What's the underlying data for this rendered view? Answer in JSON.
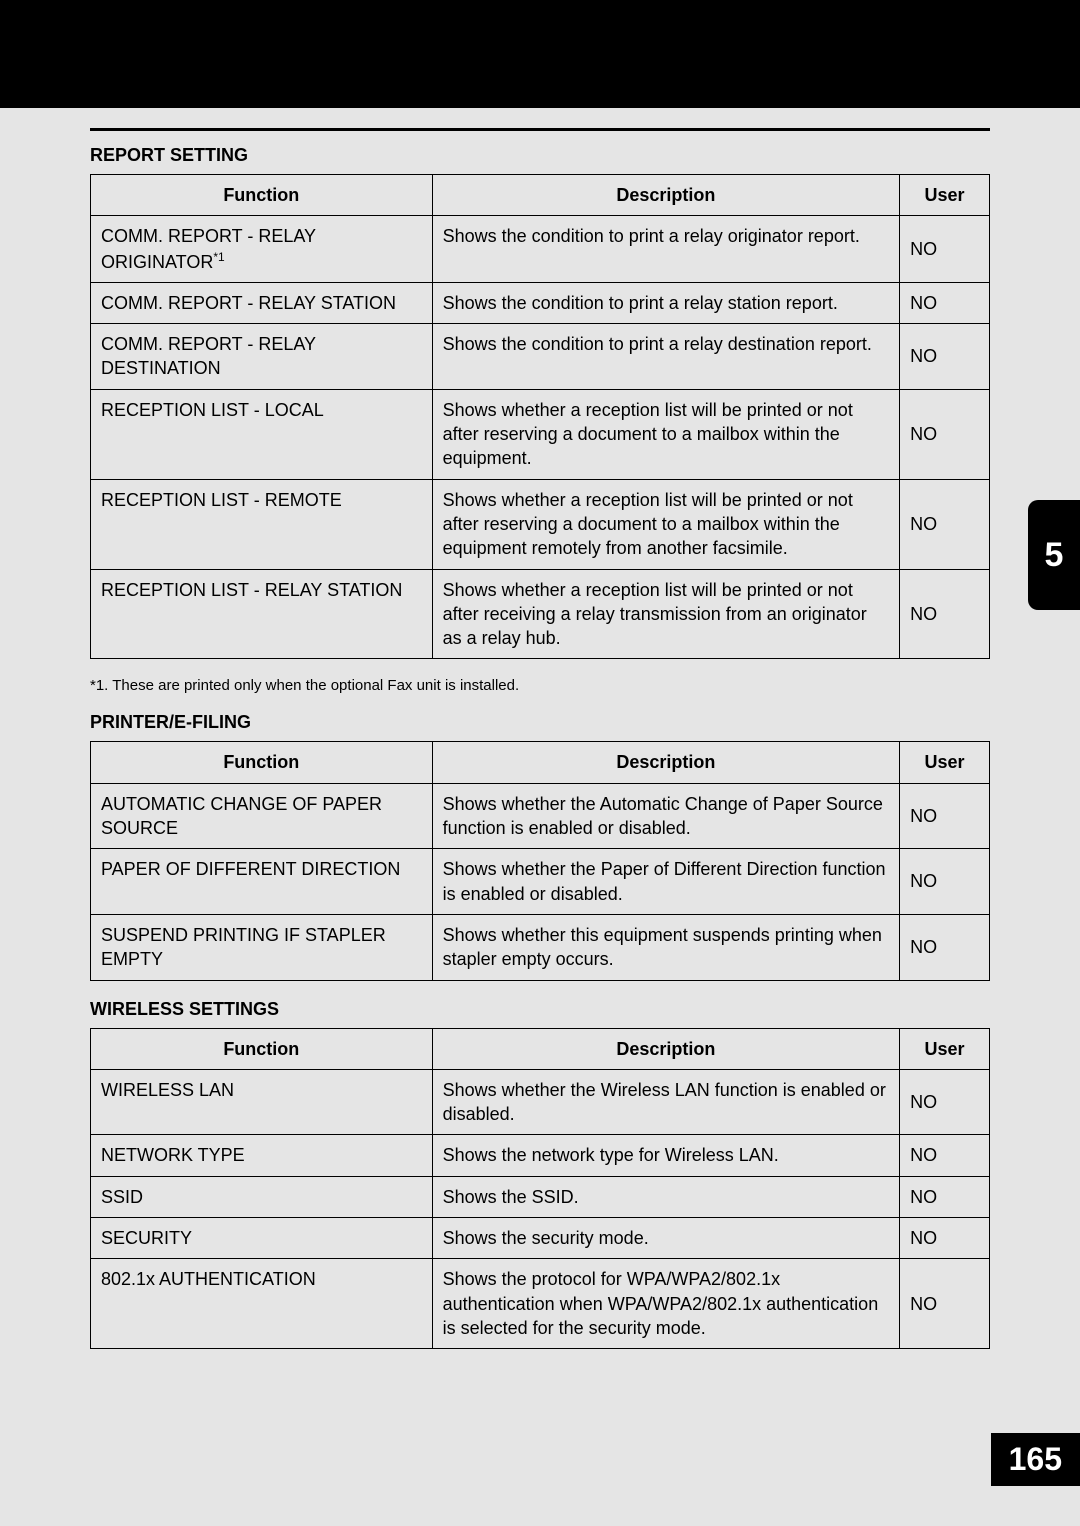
{
  "pageNumber": "165",
  "sideTab": "5",
  "sections": [
    {
      "title": "REPORT SETTING",
      "headers": {
        "func": "Function",
        "desc": "Description",
        "user": "User"
      },
      "rows": [
        {
          "func": "COMM. REPORT - RELAY ORIGINATOR",
          "footref": "*1",
          "desc": "Shows the condition to print a relay originator report.",
          "user": "NO"
        },
        {
          "func": "COMM. REPORT - RELAY STATION",
          "desc": "Shows the condition to print a relay station report.",
          "user": "NO"
        },
        {
          "func": "COMM. REPORT - RELAY DESTINATION",
          "desc": "Shows the condition to print a relay destination report.",
          "user": "NO"
        },
        {
          "func": "RECEPTION LIST - LOCAL",
          "desc": "Shows whether a reception list will be printed or not after reserving a document to a mailbox within the equipment.",
          "user": "NO"
        },
        {
          "func": "RECEPTION LIST - REMOTE",
          "desc": "Shows whether a reception list will be printed or not after reserving a document to a mailbox within the equipment remotely from another facsimile.",
          "user": "NO"
        },
        {
          "func": "RECEPTION LIST - RELAY STATION",
          "desc": "Shows whether a reception list will be printed or not after receiving a relay transmission from an originator as a relay hub.",
          "user": "NO"
        }
      ],
      "footnote": "*1. These are printed only when the optional Fax unit is installed."
    },
    {
      "title": "PRINTER/E-FILING",
      "headers": {
        "func": "Function",
        "desc": "Description",
        "user": "User"
      },
      "rows": [
        {
          "func": "AUTOMATIC CHANGE OF PAPER SOURCE",
          "desc": "Shows whether the Automatic Change of Paper Source function is enabled or disabled.",
          "user": "NO"
        },
        {
          "func": "PAPER OF DIFFERENT DIRECTION",
          "desc": "Shows whether the Paper of Different Direction function is enabled or disabled.",
          "user": "NO"
        },
        {
          "func": "SUSPEND PRINTING IF STAPLER EMPTY",
          "desc": "Shows whether this equipment suspends printing when stapler empty occurs.",
          "user": "NO"
        }
      ]
    },
    {
      "title": "WIRELESS SETTINGS",
      "headers": {
        "func": "Function",
        "desc": "Description",
        "user": "User"
      },
      "rows": [
        {
          "func": "WIRELESS LAN",
          "desc": "Shows whether the Wireless LAN function is enabled or disabled.",
          "user": "NO"
        },
        {
          "func": "NETWORK TYPE",
          "desc": "Shows the network type for Wireless LAN.",
          "user": "NO"
        },
        {
          "func": "SSID",
          "desc": "Shows the SSID.",
          "user": "NO"
        },
        {
          "func": "SECURITY",
          "desc": "Shows the security mode.",
          "user": "NO"
        },
        {
          "func": "802.1x AUTHENTICATION",
          "desc": "Shows the protocol for WPA/WPA2/802.1x authentication when WPA/WPA2/802.1x authentication is selected for the security mode.",
          "user": "NO"
        }
      ]
    }
  ]
}
